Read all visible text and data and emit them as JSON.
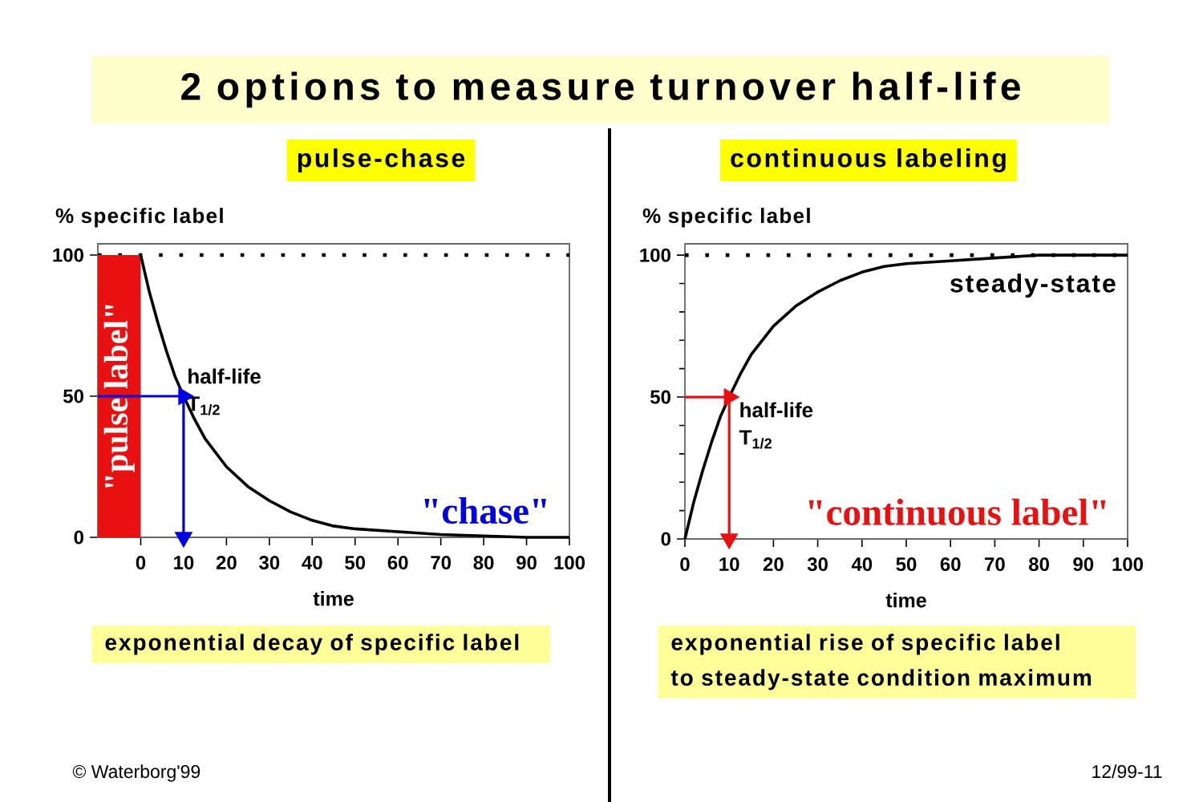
{
  "chart_data": [
    {
      "type": "line",
      "title": "2 options to measure turnover half-life",
      "subtitle": "pulse-chase",
      "xlabel": "time",
      "ylabel": "% specific label",
      "series": [
        {
          "type": "area",
          "name": "\"pulse label\"",
          "color": "#e81010",
          "x": [
            -10,
            0
          ],
          "values": [
            100,
            100
          ]
        },
        {
          "color": "#000000",
          "x": [
            0,
            2,
            4,
            6,
            8,
            10,
            12.5,
            15,
            17.5,
            20,
            25,
            30,
            35,
            40,
            45,
            50,
            60,
            70,
            80,
            90,
            100
          ],
          "values": [
            100,
            87,
            76,
            66,
            57,
            50,
            42,
            35,
            30,
            25,
            18,
            13,
            9,
            6,
            4,
            3,
            2,
            1,
            0.5,
            0,
            0
          ]
        },
        {
          "color": "#0000e0",
          "marker": "triangle",
          "x": [
            -10,
            10
          ],
          "values": [
            50,
            50
          ]
        },
        {
          "color": "#0000e0",
          "marker": "triangle",
          "x": [
            10,
            10
          ],
          "values": [
            50,
            0
          ]
        }
      ],
      "xlim": [
        -10,
        100
      ],
      "xticks": [
        0,
        10,
        20,
        30,
        40,
        50,
        60,
        70,
        80,
        90,
        100
      ],
      "ylim": [
        0,
        104
      ],
      "yticks": [
        0,
        50,
        100
      ],
      "ref_lines": [
        {
          "axis": "y",
          "value": 100,
          "line_style": "dotted",
          "color": "#000000"
        }
      ],
      "annotations": [
        {
          "text": "half-life T$_{1/2}$",
          "x": 10,
          "y": 50
        },
        "\"chase\"",
        "exponential decay of specific label",
        "© Waterborg'99"
      ]
    },
    {
      "type": "line",
      "subtitle": "continuous labeling",
      "xlabel": "time",
      "ylabel": "% specific label",
      "series": [
        {
          "color": "#000000",
          "x": [
            0,
            2,
            4,
            6,
            8,
            10,
            12.5,
            15,
            17.5,
            20,
            25,
            30,
            35,
            40,
            45,
            50,
            60,
            70,
            80,
            90,
            100
          ],
          "values": [
            0,
            13,
            24,
            34,
            43,
            50,
            58,
            65,
            70,
            75,
            82,
            87,
            91,
            94,
            96,
            97,
            98,
            99,
            100,
            100,
            100
          ]
        },
        {
          "color": "#e81010",
          "marker": "triangle",
          "x": [
            0,
            10
          ],
          "values": [
            50,
            50
          ]
        },
        {
          "color": "#e81010",
          "marker": "triangle",
          "x": [
            10,
            10
          ],
          "values": [
            50,
            0
          ]
        }
      ],
      "xlim": [
        0,
        100
      ],
      "xticks": [
        0,
        10,
        20,
        30,
        40,
        50,
        60,
        70,
        80,
        90,
        100
      ],
      "ylim": [
        0,
        104
      ],
      "yticks": [
        0,
        {
          "value": 10,
          "label": null
        },
        {
          "value": 20,
          "label": null
        },
        {
          "value": 30,
          "label": null
        },
        {
          "value": 40,
          "label": null
        },
        50,
        {
          "value": 60,
          "label": null
        },
        {
          "value": 70,
          "label": null
        },
        {
          "value": 80,
          "label": null
        },
        {
          "value": 90,
          "label": null
        },
        100
      ],
      "ref_lines": [
        {
          "axis": "y",
          "value": 100,
          "line_style": "dotted",
          "color": "#000000"
        }
      ],
      "annotations": [
        "steady-state",
        {
          "text": "half-life T$_{1/2}$",
          "x": 10,
          "y": 50
        },
        "\"continuous label\"",
        "exponential rise of specific label",
        "to steady-state condition maximum",
        "12/99-11"
      ]
    }
  ]
}
